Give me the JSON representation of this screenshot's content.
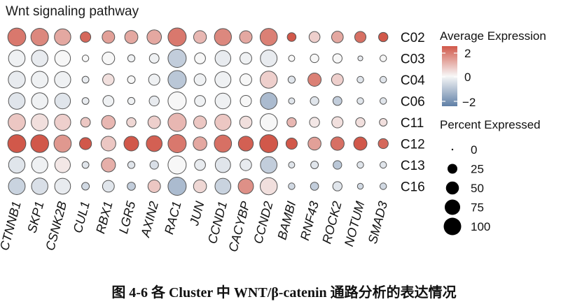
{
  "chart_data": {
    "type": "dotplot",
    "title": "Wnt signaling pathway",
    "genes": [
      "CTNNB1",
      "SKP1",
      "CSNK2B",
      "CUL1",
      "RBX1",
      "LGR5",
      "AXIN2",
      "RAC1",
      "JUN",
      "CCND1",
      "CACYBP",
      "CCND2",
      "BAMBI",
      "RNF43",
      "ROCK2",
      "NOTUM",
      "SMAD3"
    ],
    "clusters": [
      "C02",
      "C03",
      "C04",
      "C06",
      "C11",
      "C12",
      "C13",
      "C16"
    ],
    "avg_expression": [
      [
        1.6,
        1.4,
        1.0,
        1.8,
        1.1,
        1.0,
        1.0,
        1.6,
        0.8,
        1.4,
        1.0,
        1.5,
        2.0,
        0.5,
        1.0,
        1.7,
        2.0
      ],
      [
        -0.1,
        -0.2,
        0.0,
        0.0,
        0.0,
        -0.1,
        -0.1,
        -0.7,
        0.0,
        -0.2,
        -0.1,
        -0.2,
        0.0,
        0.0,
        0.0,
        -0.2,
        0.0
      ],
      [
        -0.2,
        -0.1,
        -0.1,
        -0.2,
        0.3,
        0.0,
        -0.1,
        -0.8,
        -0.1,
        -0.1,
        0.0,
        0.5,
        -0.3,
        1.5,
        0.5,
        -0.3,
        -0.3
      ],
      [
        -0.3,
        -0.1,
        -0.3,
        -0.2,
        -0.1,
        -0.1,
        -0.2,
        0.0,
        -0.1,
        -0.1,
        0.0,
        -1.0,
        -0.3,
        -0.3,
        -0.7,
        -0.3,
        -0.3
      ],
      [
        0.6,
        0.3,
        0.5,
        0.6,
        0.8,
        0.4,
        0.5,
        0.8,
        0.6,
        0.6,
        0.3,
        0.0,
        0.8,
        0.2,
        0.3,
        0.3,
        0.3
      ],
      [
        2.0,
        2.0,
        1.2,
        2.1,
        0.6,
        2.1,
        1.9,
        1.6,
        1.0,
        1.7,
        1.9,
        2.1,
        2.0,
        1.1,
        1.7,
        2.1,
        1.8
      ],
      [
        -0.3,
        -0.1,
        0.2,
        -0.3,
        0.9,
        -0.3,
        -0.4,
        0.0,
        -0.2,
        -0.3,
        -0.2,
        -0.7,
        -0.3,
        -0.3,
        -0.8,
        -0.3,
        -0.3
      ],
      [
        -0.6,
        -0.4,
        -0.2,
        -0.5,
        -0.3,
        -0.7,
        0.6,
        -1.0,
        0.4,
        -0.6,
        1.3,
        0.3,
        -0.5,
        -0.7,
        -0.3,
        -0.5,
        -0.5
      ]
    ],
    "pct_expressed": [
      [
        97,
        92,
        78,
        25,
        40,
        45,
        57,
        100,
        42,
        85,
        40,
        88,
        15,
        28,
        33,
        30,
        18
      ],
      [
        80,
        78,
        70,
        6,
        40,
        8,
        20,
        100,
        28,
        70,
        34,
        82,
        5,
        14,
        18,
        2,
        6
      ],
      [
        85,
        82,
        76,
        7,
        32,
        10,
        30,
        100,
        34,
        74,
        34,
        86,
        8,
        46,
        34,
        6,
        6
      ],
      [
        80,
        78,
        70,
        7,
        28,
        8,
        22,
        100,
        28,
        70,
        30,
        82,
        5,
        14,
        16,
        6,
        6
      ],
      [
        88,
        84,
        76,
        20,
        50,
        18,
        40,
        100,
        42,
        76,
        38,
        88,
        18,
        22,
        30,
        18,
        10
      ],
      [
        98,
        96,
        88,
        36,
        60,
        60,
        72,
        100,
        50,
        88,
        62,
        98,
        30,
        44,
        48,
        46,
        22
      ],
      [
        78,
        76,
        68,
        7,
        54,
        8,
        14,
        100,
        28,
        66,
        32,
        80,
        5,
        10,
        14,
        6,
        6
      ],
      [
        82,
        78,
        72,
        10,
        34,
        12,
        40,
        100,
        44,
        72,
        66,
        86,
        6,
        12,
        18,
        4,
        6
      ]
    ],
    "color_legend": {
      "title": "Average Expression",
      "ticks": [
        "2",
        "0",
        "−2"
      ],
      "range": [
        -2,
        2
      ]
    },
    "size_legend": {
      "title": "Percent Expressed",
      "ticks": [
        "0",
        "25",
        "50",
        "75",
        "100"
      ]
    },
    "colors": {
      "high": "#d1584a",
      "mid": "#f7f7f7",
      "low": "#5f7fa6",
      "dot_border": "#555555"
    }
  },
  "caption": "图 4-6  各 Cluster 中 WNT/β-catenin 通路分析的表达情况"
}
